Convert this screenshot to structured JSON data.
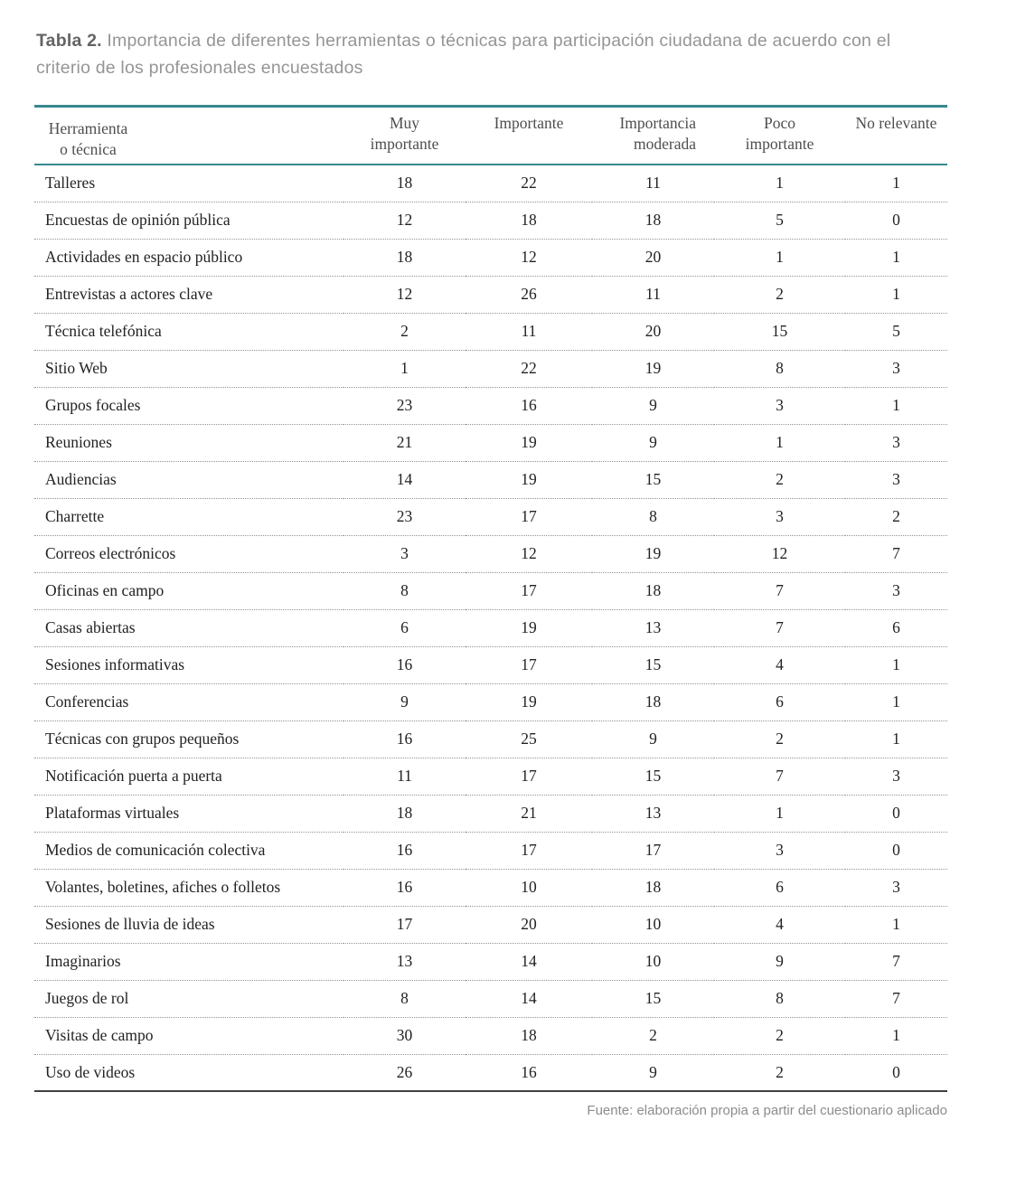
{
  "caption": {
    "label": "Tabla 2.",
    "text": "Importancia de diferentes herramientas o técnicas para participación ciudadana de acuerdo con el criterio de los profesionales encuestados"
  },
  "source": "Fuente: elaboración propia a partir del cuestionario aplicado",
  "colors": {
    "accent_teal": "#37888e",
    "rule_dark": "#404040",
    "dotted_gray": "#949494",
    "body_text": "#222222",
    "header_text": "#4e4e4e"
  },
  "chart_data": {
    "type": "table",
    "title": "Tabla 2. Importancia de diferentes herramientas o técnicas para participación ciudadana de acuerdo con el criterio de los profesionales encuestados",
    "columns": [
      "Herramienta o técnica",
      "Muy importante",
      "Importante",
      "Importancia moderada",
      "Poco importante",
      "No relevante"
    ],
    "rows": [
      {
        "herramienta": "Talleres",
        "values": [
          18,
          22,
          11,
          1,
          1
        ]
      },
      {
        "herramienta": "Encuestas de opinión pública",
        "values": [
          12,
          18,
          18,
          5,
          0
        ]
      },
      {
        "herramienta": "Actividades en espacio público",
        "values": [
          18,
          12,
          20,
          1,
          1
        ]
      },
      {
        "herramienta": "Entrevistas a actores clave",
        "values": [
          12,
          26,
          11,
          2,
          1
        ]
      },
      {
        "herramienta": "Técnica telefónica",
        "values": [
          2,
          11,
          20,
          15,
          5
        ]
      },
      {
        "herramienta": "Sitio Web",
        "values": [
          1,
          22,
          19,
          8,
          3
        ]
      },
      {
        "herramienta": "Grupos focales",
        "values": [
          23,
          16,
          9,
          3,
          1
        ]
      },
      {
        "herramienta": "Reuniones",
        "values": [
          21,
          19,
          9,
          1,
          3
        ]
      },
      {
        "herramienta": "Audiencias",
        "values": [
          14,
          19,
          15,
          2,
          3
        ]
      },
      {
        "herramienta": "Charrette",
        "values": [
          23,
          17,
          8,
          3,
          2
        ]
      },
      {
        "herramienta": "Correos electrónicos",
        "values": [
          3,
          12,
          19,
          12,
          7
        ]
      },
      {
        "herramienta": "Oficinas en campo",
        "values": [
          8,
          17,
          18,
          7,
          3
        ]
      },
      {
        "herramienta": "Casas abiertas",
        "values": [
          6,
          19,
          13,
          7,
          6
        ]
      },
      {
        "herramienta": "Sesiones informativas",
        "values": [
          16,
          17,
          15,
          4,
          1
        ]
      },
      {
        "herramienta": "Conferencias",
        "values": [
          9,
          19,
          18,
          6,
          1
        ]
      },
      {
        "herramienta": "Técnicas con grupos pequeños",
        "values": [
          16,
          25,
          9,
          2,
          1
        ]
      },
      {
        "herramienta": "Notificación puerta a puerta",
        "values": [
          11,
          17,
          15,
          7,
          3
        ]
      },
      {
        "herramienta": "Plataformas virtuales",
        "values": [
          18,
          21,
          13,
          1,
          0
        ]
      },
      {
        "herramienta": "Medios de comunicación colectiva",
        "values": [
          16,
          17,
          17,
          3,
          0
        ]
      },
      {
        "herramienta": "Volantes, boletines, afiches o folletos",
        "values": [
          16,
          10,
          18,
          6,
          3
        ]
      },
      {
        "herramienta": "Sesiones de lluvia de ideas",
        "values": [
          17,
          20,
          10,
          4,
          1
        ]
      },
      {
        "herramienta": "Imaginarios",
        "values": [
          13,
          14,
          10,
          9,
          7
        ]
      },
      {
        "herramienta": "Juegos de rol",
        "values": [
          8,
          14,
          15,
          8,
          7
        ]
      },
      {
        "herramienta": "Visitas de campo",
        "values": [
          30,
          18,
          2,
          2,
          1
        ]
      },
      {
        "herramienta": "Uso de videos",
        "values": [
          26,
          16,
          9,
          2,
          0
        ]
      }
    ]
  }
}
